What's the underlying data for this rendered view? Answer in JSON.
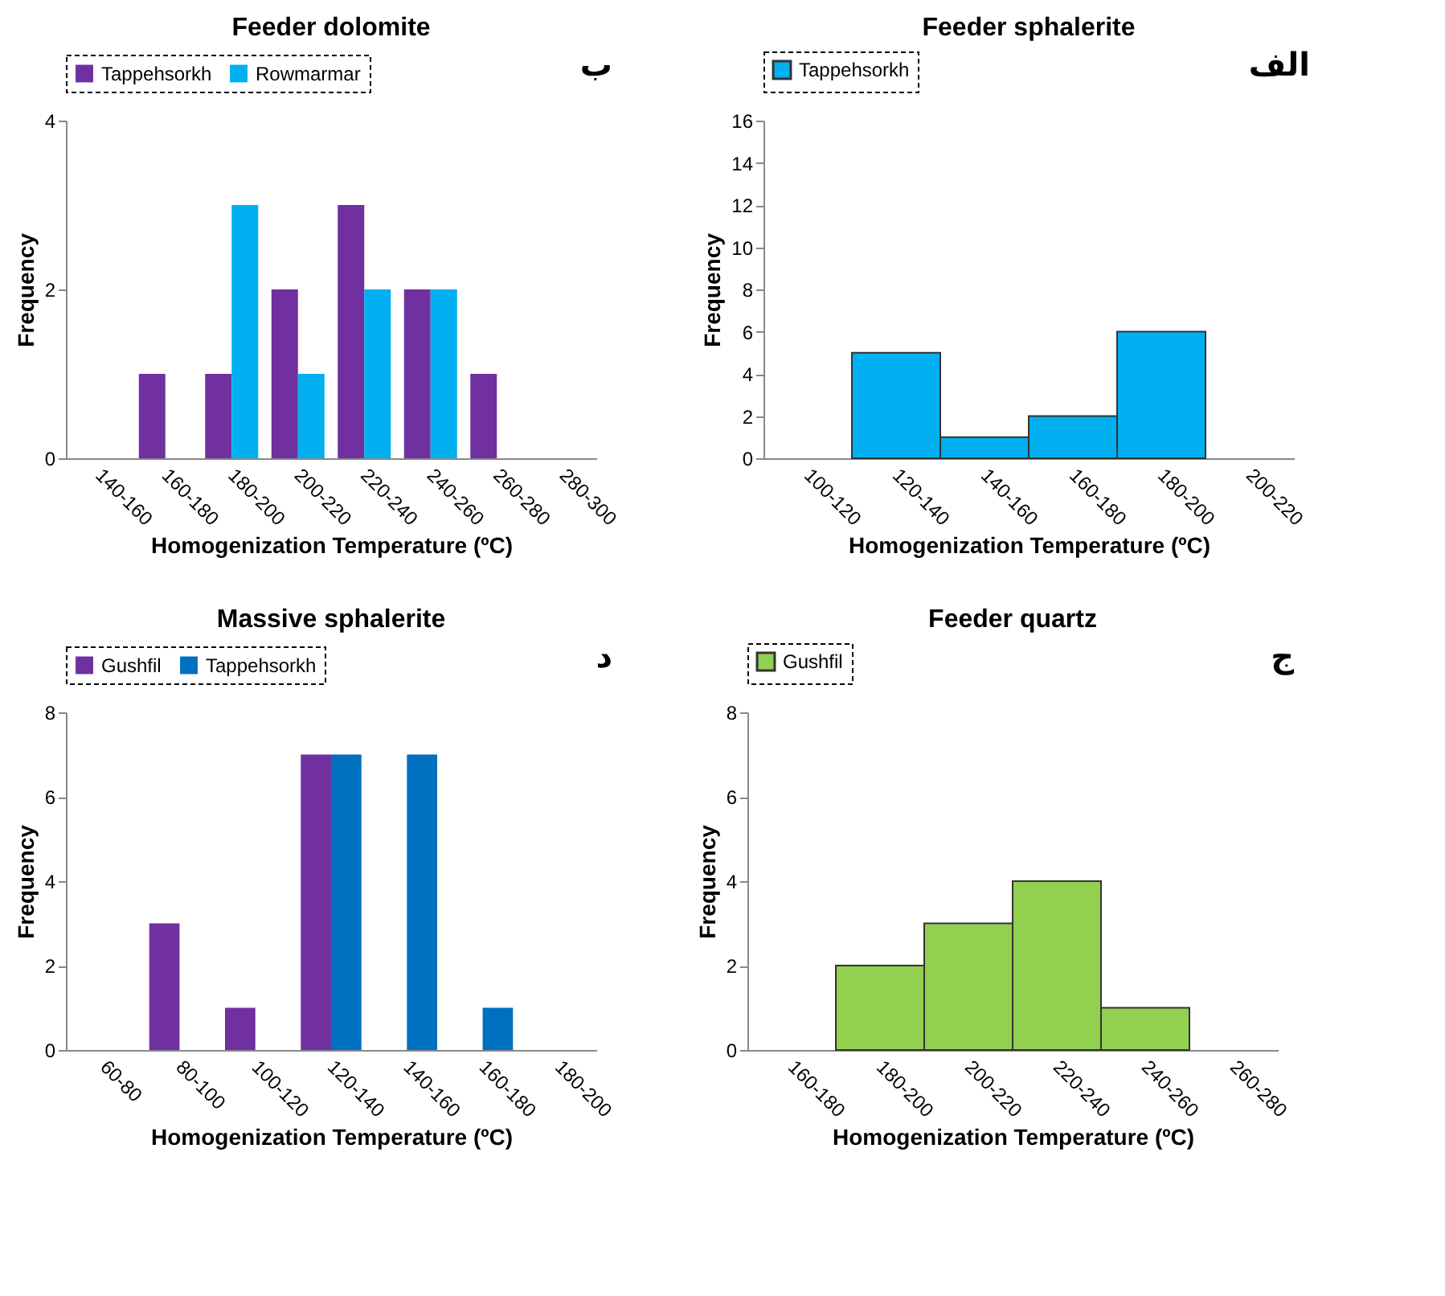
{
  "chart_data": [
    {
      "type": "bar",
      "title": "Feeder dolomite",
      "xlabel": "Homogenization Temperature (ºC)",
      "ylabel": "Frequency",
      "categories": [
        "140-160",
        "160-180",
        "180-200",
        "200-220",
        "220-240",
        "240-260",
        "260-280",
        "280-300"
      ],
      "series": [
        {
          "name": "Tappehsorkh",
          "color": "#7030a0",
          "values": [
            0,
            1,
            1,
            2,
            3,
            2,
            1,
            0
          ]
        },
        {
          "name": "Rowmarmar",
          "color": "#00b0f0",
          "values": [
            0,
            0,
            3,
            1,
            2,
            2,
            0,
            0
          ]
        }
      ],
      "ylim": [
        0,
        4
      ],
      "yticks": [
        0,
        2,
        4
      ],
      "legend": "top",
      "annotations": [
        "ب"
      ]
    },
    {
      "type": "bar",
      "title": "Feeder sphalerite",
      "xlabel": "Homogenization Temperature (ºC)",
      "ylabel": "Frequency",
      "categories": [
        "100-120",
        "120-140",
        "140-160",
        "160-180",
        "180-200",
        "200-220"
      ],
      "series": [
        {
          "name": "Tappehsorkh",
          "color": "#00b0f0",
          "values": [
            0,
            5,
            1,
            2,
            6,
            0
          ]
        }
      ],
      "ylim": [
        0,
        16
      ],
      "yticks": [
        0,
        2,
        4,
        6,
        8,
        10,
        12,
        14,
        16
      ],
      "legend": "top",
      "annotations": [
        "الف"
      ]
    },
    {
      "type": "bar",
      "title": "Massive sphalerite",
      "xlabel": "Homogenization Temperature (ºC)",
      "ylabel": "Frequency",
      "categories": [
        "60-80",
        "80-100",
        "100-120",
        "120-140",
        "140-160",
        "160-180",
        "180-200"
      ],
      "series": [
        {
          "name": "Gushfil",
          "color": "#7030a0",
          "values": [
            0,
            3,
            1,
            7,
            0,
            0,
            0
          ]
        },
        {
          "name": "Tappehsorkh",
          "color": "#0070c0",
          "values": [
            0,
            0,
            0,
            7,
            7,
            1,
            0
          ]
        }
      ],
      "ylim": [
        0,
        8
      ],
      "yticks": [
        0,
        2,
        4,
        6,
        8
      ],
      "legend": "top",
      "annotations": [
        "د"
      ]
    },
    {
      "type": "bar",
      "title": "Feeder quartz",
      "xlabel": "Homogenization Temperature (ºC)",
      "ylabel": "Frequency",
      "categories": [
        "160-180",
        "180-200",
        "200-220",
        "220-240",
        "240-260",
        "260-280"
      ],
      "series": [
        {
          "name": "Gushfil",
          "color": "#92d050",
          "values": [
            0,
            2,
            3,
            4,
            1,
            0
          ]
        }
      ],
      "ylim": [
        0,
        8
      ],
      "yticks": [
        0,
        2,
        4,
        6,
        8
      ],
      "legend": "top",
      "annotations": [
        "ج"
      ]
    }
  ]
}
